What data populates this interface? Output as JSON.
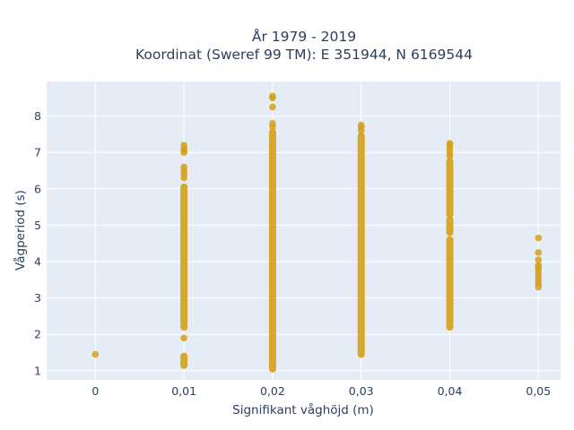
{
  "chart_data": {
    "type": "scatter",
    "title_line1": "År 1979 - 2019",
    "title_line2": "Koordinat (Sweref 99 TM): E 351944, N 6169544",
    "xlabel": "Signifikant våghöjd (m)",
    "ylabel": "Vågperiod (s)",
    "xlim": [
      -0.0055,
      0.0525
    ],
    "ylim": [
      0.75,
      8.95
    ],
    "xticks": [
      0,
      0.01,
      0.02,
      0.03,
      0.04,
      0.05
    ],
    "xtick_labels": [
      "0",
      "0,01",
      "0,02",
      "0,03",
      "0,04",
      "0,05"
    ],
    "yticks": [
      1,
      2,
      3,
      4,
      5,
      6,
      7,
      8
    ],
    "ytick_labels": [
      "1",
      "2",
      "3",
      "4",
      "5",
      "6",
      "7",
      "8"
    ],
    "grid": true,
    "legend": "none",
    "marker_color": "#d4a017",
    "plot_bg": "#e5ecf6",
    "series": [
      {
        "x": 0,
        "ranges": [],
        "points": [
          1.45
        ]
      },
      {
        "x": 0.01,
        "ranges": [
          [
            1.15,
            1.4
          ],
          [
            2.2,
            6.05
          ]
        ],
        "points": [
          1.9,
          6.3,
          6.4,
          6.5,
          6.6,
          7.0,
          7.05,
          7.1,
          7.2
        ]
      },
      {
        "x": 0.02,
        "ranges": [
          [
            1.05,
            7.55
          ]
        ],
        "points": [
          7.7,
          7.8,
          8.25,
          8.5,
          8.55
        ]
      },
      {
        "x": 0.03,
        "ranges": [
          [
            1.45,
            7.45
          ]
        ],
        "points": [
          7.6,
          7.7,
          7.75
        ]
      },
      {
        "x": 0.04,
        "ranges": [
          [
            2.2,
            4.6
          ],
          [
            4.8,
            5.15
          ],
          [
            5.3,
            6.75
          ]
        ],
        "points": [
          6.9,
          7.0,
          7.1,
          7.2,
          7.25
        ]
      },
      {
        "x": 0.05,
        "ranges": [],
        "points": [
          3.3,
          3.4,
          3.5,
          3.6,
          3.7,
          3.8,
          3.85,
          3.9,
          4.05,
          4.25,
          4.65
        ]
      }
    ]
  }
}
